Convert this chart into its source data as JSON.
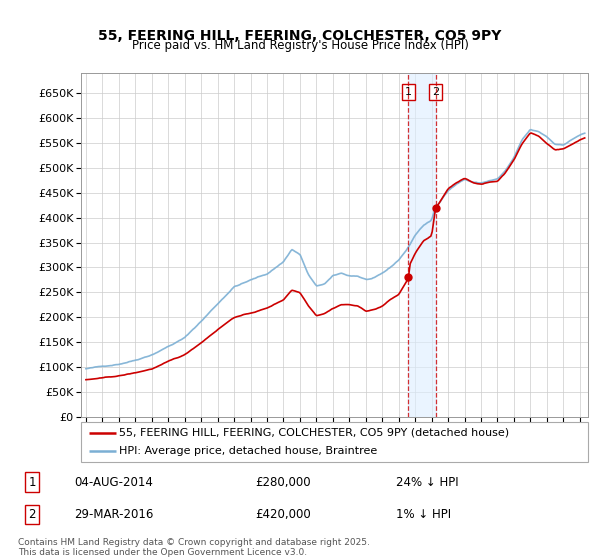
{
  "title": "55, FEERING HILL, FEERING, COLCHESTER, CO5 9PY",
  "subtitle": "Price paid vs. HM Land Registry's House Price Index (HPI)",
  "ytick_values": [
    0,
    50000,
    100000,
    150000,
    200000,
    250000,
    300000,
    350000,
    400000,
    450000,
    500000,
    550000,
    600000,
    650000
  ],
  "ylabel_ticks": [
    "£0",
    "£50K",
    "£100K",
    "£150K",
    "£200K",
    "£250K",
    "£300K",
    "£350K",
    "£400K",
    "£450K",
    "£500K",
    "£550K",
    "£600K",
    "£650K"
  ],
  "ylim": [
    0,
    690000
  ],
  "red_color": "#cc0000",
  "blue_color": "#7bafd4",
  "transaction1_x": 2014.58,
  "transaction1_y": 280000,
  "transaction2_x": 2016.24,
  "transaction2_y": 420000,
  "legend_line1": "55, FEERING HILL, FEERING, COLCHESTER, CO5 9PY (detached house)",
  "legend_line2": "HPI: Average price, detached house, Braintree",
  "transaction1_date": "04-AUG-2014",
  "transaction1_price": "£280,000",
  "transaction1_pct": "24% ↓ HPI",
  "transaction2_date": "29-MAR-2016",
  "transaction2_price": "£420,000",
  "transaction2_pct": "1% ↓ HPI",
  "footer": "Contains HM Land Registry data © Crown copyright and database right 2025.\nThis data is licensed under the Open Government Licence v3.0.",
  "background_color": "#ffffff",
  "grid_color": "#cccccc",
  "shade_color": "#ddeeff",
  "xlim_left": 1994.7,
  "xlim_right": 2025.5
}
